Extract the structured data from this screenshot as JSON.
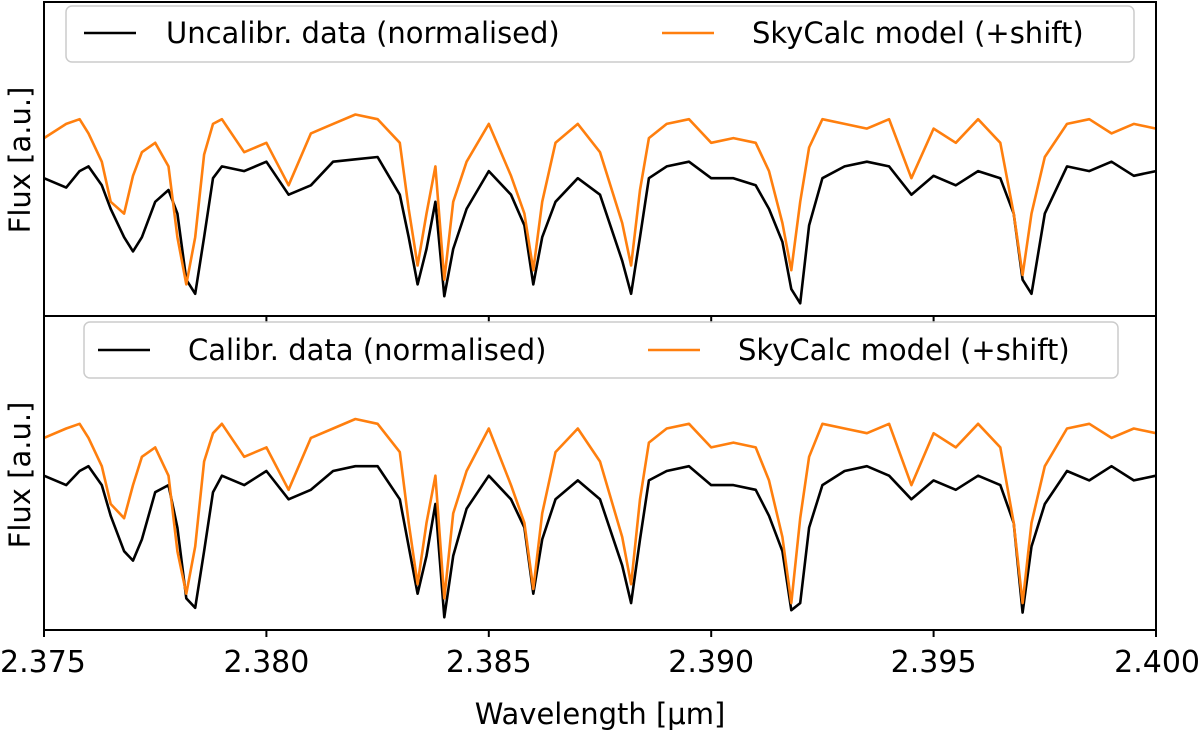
{
  "chart_data": [
    {
      "type": "line",
      "panel": "top",
      "xlabel": "",
      "ylabel": "Flux [a.u.]",
      "xlim": [
        2.375,
        2.4
      ],
      "ylim": [
        0,
        1
      ],
      "x": [
        2.375,
        2.3755,
        2.3758,
        2.376,
        2.3763,
        2.3765,
        2.3768,
        2.377,
        2.3772,
        2.3775,
        2.3778,
        2.378,
        2.3782,
        2.3784,
        2.3786,
        2.3788,
        2.379,
        2.3795,
        2.38,
        2.3805,
        2.381,
        2.3815,
        2.382,
        2.3825,
        2.383,
        2.3832,
        2.3834,
        2.3836,
        2.3838,
        2.384,
        2.3842,
        2.3845,
        2.385,
        2.3855,
        2.3858,
        2.386,
        2.3862,
        2.3865,
        2.387,
        2.3875,
        2.388,
        2.3882,
        2.3884,
        2.3886,
        2.389,
        2.3895,
        2.39,
        2.3905,
        2.391,
        2.3913,
        2.3916,
        2.3918,
        2.392,
        2.3922,
        2.3925,
        2.393,
        2.3935,
        2.394,
        2.3945,
        2.395,
        2.3955,
        2.396,
        2.3965,
        2.3968,
        2.397,
        2.3972,
        2.3975,
        2.398,
        2.3985,
        2.399,
        2.3995,
        2.4
      ],
      "series": [
        {
          "name": "Uncalibr. data (normalised)",
          "color": "#000000",
          "values": [
            0.55,
            0.51,
            0.58,
            0.6,
            0.52,
            0.42,
            0.3,
            0.24,
            0.3,
            0.45,
            0.5,
            0.4,
            0.12,
            0.06,
            0.3,
            0.55,
            0.6,
            0.58,
            0.62,
            0.48,
            0.52,
            0.62,
            0.63,
            0.64,
            0.48,
            0.3,
            0.1,
            0.25,
            0.45,
            0.05,
            0.25,
            0.42,
            0.58,
            0.48,
            0.35,
            0.1,
            0.3,
            0.45,
            0.55,
            0.48,
            0.2,
            0.06,
            0.3,
            0.55,
            0.6,
            0.62,
            0.55,
            0.55,
            0.52,
            0.42,
            0.28,
            0.08,
            0.02,
            0.35,
            0.55,
            0.6,
            0.62,
            0.6,
            0.48,
            0.56,
            0.52,
            0.58,
            0.55,
            0.4,
            0.12,
            0.06,
            0.4,
            0.6,
            0.58,
            0.62,
            0.56,
            0.58
          ]
        },
        {
          "name": "SkyCalc model (+shift)",
          "color": "#ff7f0e",
          "values": [
            0.72,
            0.78,
            0.8,
            0.74,
            0.62,
            0.45,
            0.4,
            0.56,
            0.66,
            0.7,
            0.6,
            0.3,
            0.1,
            0.3,
            0.65,
            0.78,
            0.8,
            0.66,
            0.7,
            0.52,
            0.74,
            0.78,
            0.82,
            0.8,
            0.7,
            0.42,
            0.18,
            0.4,
            0.6,
            0.12,
            0.45,
            0.62,
            0.78,
            0.56,
            0.4,
            0.16,
            0.45,
            0.7,
            0.78,
            0.66,
            0.36,
            0.18,
            0.5,
            0.72,
            0.78,
            0.8,
            0.7,
            0.72,
            0.7,
            0.58,
            0.36,
            0.16,
            0.45,
            0.68,
            0.8,
            0.78,
            0.76,
            0.8,
            0.55,
            0.76,
            0.7,
            0.8,
            0.7,
            0.4,
            0.14,
            0.4,
            0.64,
            0.78,
            0.8,
            0.74,
            0.78,
            0.76
          ]
        }
      ],
      "legend": "upper-center"
    },
    {
      "type": "line",
      "panel": "bottom",
      "xlabel": "Wavelength [μm]",
      "ylabel": "Flux [a.u.]",
      "xlim": [
        2.375,
        2.4
      ],
      "ylim": [
        0,
        1
      ],
      "x": [
        2.375,
        2.3755,
        2.3758,
        2.376,
        2.3763,
        2.3765,
        2.3768,
        2.377,
        2.3772,
        2.3775,
        2.3778,
        2.378,
        2.3782,
        2.3784,
        2.3786,
        2.3788,
        2.379,
        2.3795,
        2.38,
        2.3805,
        2.381,
        2.3815,
        2.382,
        2.3825,
        2.383,
        2.3832,
        2.3834,
        2.3836,
        2.3838,
        2.384,
        2.3842,
        2.3845,
        2.385,
        2.3855,
        2.3858,
        2.386,
        2.3862,
        2.3865,
        2.387,
        2.3875,
        2.388,
        2.3882,
        2.3884,
        2.3886,
        2.389,
        2.3895,
        2.39,
        2.3905,
        2.391,
        2.3913,
        2.3916,
        2.3918,
        2.392,
        2.3922,
        2.3925,
        2.393,
        2.3935,
        2.394,
        2.3945,
        2.395,
        2.3955,
        2.396,
        2.3965,
        2.3968,
        2.397,
        2.3972,
        2.3975,
        2.398,
        2.3985,
        2.399,
        2.3995,
        2.4
      ],
      "series": [
        {
          "name": "Calibr. data (normalised)",
          "color": "#000000",
          "values": [
            0.62,
            0.58,
            0.64,
            0.66,
            0.58,
            0.45,
            0.3,
            0.26,
            0.35,
            0.55,
            0.58,
            0.4,
            0.1,
            0.06,
            0.3,
            0.55,
            0.62,
            0.58,
            0.64,
            0.52,
            0.56,
            0.64,
            0.66,
            0.66,
            0.52,
            0.32,
            0.12,
            0.28,
            0.5,
            0.02,
            0.28,
            0.48,
            0.62,
            0.52,
            0.4,
            0.12,
            0.35,
            0.52,
            0.6,
            0.52,
            0.24,
            0.08,
            0.35,
            0.6,
            0.64,
            0.66,
            0.58,
            0.58,
            0.56,
            0.45,
            0.3,
            0.05,
            0.08,
            0.4,
            0.58,
            0.64,
            0.66,
            0.62,
            0.52,
            0.6,
            0.56,
            0.62,
            0.58,
            0.42,
            0.04,
            0.32,
            0.5,
            0.64,
            0.6,
            0.66,
            0.6,
            0.62
          ]
        },
        {
          "name": "SkyCalc model (+shift)",
          "color": "#ff7f0e",
          "values": [
            0.78,
            0.82,
            0.84,
            0.78,
            0.66,
            0.5,
            0.44,
            0.58,
            0.7,
            0.74,
            0.62,
            0.3,
            0.12,
            0.32,
            0.68,
            0.8,
            0.84,
            0.7,
            0.74,
            0.56,
            0.78,
            0.82,
            0.86,
            0.84,
            0.72,
            0.42,
            0.16,
            0.42,
            0.62,
            0.1,
            0.46,
            0.64,
            0.82,
            0.58,
            0.42,
            0.14,
            0.46,
            0.72,
            0.82,
            0.68,
            0.36,
            0.16,
            0.52,
            0.76,
            0.82,
            0.84,
            0.74,
            0.76,
            0.74,
            0.6,
            0.36,
            0.08,
            0.44,
            0.7,
            0.84,
            0.82,
            0.8,
            0.84,
            0.58,
            0.8,
            0.74,
            0.84,
            0.74,
            0.42,
            0.08,
            0.42,
            0.66,
            0.82,
            0.84,
            0.78,
            0.82,
            0.8
          ]
        }
      ],
      "legend": "upper-center",
      "xticks": [
        "2.375",
        "2.380",
        "2.385",
        "2.390",
        "2.395",
        "2.400"
      ]
    }
  ]
}
